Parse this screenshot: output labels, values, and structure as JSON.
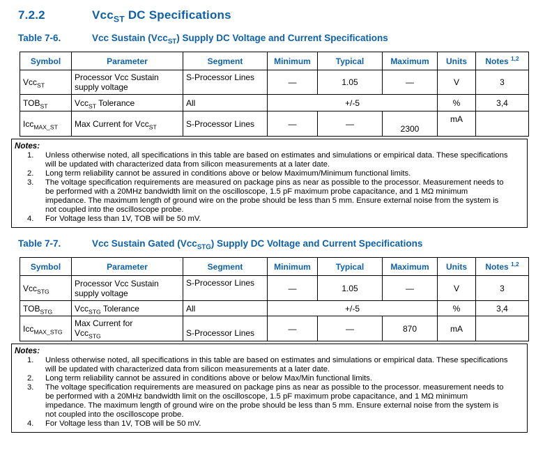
{
  "theme": {
    "accent_blue": "#0e61a9"
  },
  "section": {
    "number": "7.2.2",
    "title": "Vcc_{ST} DC Specifications"
  },
  "tables": [
    {
      "label": "Table 7-6.",
      "caption": "Vcc Sustain (Vcc_{ST}) Supply DC Voltage and Current Specifications",
      "columns": [
        "Symbol",
        "Parameter",
        "Segment",
        "Minimum",
        "Typical",
        "Maximum",
        "Units",
        "Notes ^{1,2}"
      ],
      "rows": [
        {
          "symbol": "Vcc_{ST}",
          "parameter": "Processor Vcc Sustain supply voltage",
          "segment": "S-Processor Lines",
          "minimum": "—",
          "typical": "1.05",
          "maximum": "—",
          "units": "V",
          "notes": "3"
        },
        {
          "symbol": "TOB_{ST}",
          "parameter": "Vcc_{ST} Tolerance",
          "segment": "All",
          "merged": "+/-5",
          "units": "%",
          "notes": "3,4"
        },
        {
          "symbol": "Icc_{MAX_ST}",
          "parameter": "Max Current for Vcc_{ST}",
          "segment": "S-Processor Lines",
          "minimum": "—",
          "typical": "—",
          "maximum": "2300",
          "units": "mA",
          "notes": ""
        }
      ],
      "notes": {
        "label": "Notes:",
        "items": [
          {
            "num": "1.",
            "text": "Unless otherwise noted, all specifications in this table are based on estimates and simulations or empirical data. These specifications will be updated with characterized data from silicon measurements at a later date."
          },
          {
            "num": "2.",
            "text": "Long term reliability cannot be assured in conditions above or below Maximum/Minimum functional limits."
          },
          {
            "num": "3.",
            "text": "The voltage specification requirements are measured on package pins as near as possible to the processor. Measurement needs to be performed with a 20MHz bandwidth limit on the oscilloscope, 1.5 pF maximum probe capacitance, and 1 MΩ minimum impedance. The maximum length of ground wire on the probe should be less than 5 mm. Ensure external noise from the system is not coupled into the oscilloscope probe."
          },
          {
            "num": "4.",
            "text": "For Voltage less than 1V, TOB will be 50 mV."
          }
        ]
      }
    },
    {
      "label": "Table 7-7.",
      "caption": "Vcc Sustain Gated (Vcc_{STG}) Supply DC Voltage and Current Specifications",
      "columns": [
        "Symbol",
        "Parameter",
        "Segment",
        "Minimum",
        "Typical",
        "Maximum",
        "Units",
        "Notes ^{1,2}"
      ],
      "rows": [
        {
          "symbol": "Vcc_{STG}",
          "parameter": "Processor Vcc Sustain supply voltage",
          "segment": "S-Processor Lines",
          "minimum": "—",
          "typical": "1.05",
          "maximum": "—",
          "units": "V",
          "notes": "3"
        },
        {
          "symbol": "TOB_{STG}",
          "parameter": "Vcc_{STG} Tolerance",
          "segment": "All",
          "merged": "+/-5",
          "units": "%",
          "notes": "3,4"
        },
        {
          "symbol": "Icc_{MAX_STG}",
          "parameter": "Max Current for Vcc_{STG}",
          "segment": "S-Processor Lines",
          "minimum": "—",
          "typical": "—",
          "maximum": "870",
          "units": "mA",
          "notes": ""
        }
      ],
      "notes": {
        "label": "Notes:",
        "items": [
          {
            "num": "1.",
            "text": "Unless otherwise noted, all specifications in this table are based on estimates and simulations or empirical data. These specifications will be updated with characterized data from silicon measurements at a later date."
          },
          {
            "num": "2.",
            "text": "Long term reliability cannot be assured in conditions above or below Max/Min functional limits."
          },
          {
            "num": "3.",
            "text": "The voltage specification requirements are measured on package pins as near as possible to the processor. measurement needs to be performed with a 20MHz bandwidth limit on the oscilloscope, 1.5 pF maximum probe capacitance, and 1 MΩ minimum impedance. The maximum length of ground wire on the probe should be less than 5 mm. Ensure external noise from the system is not coupled into the oscilloscope probe."
          },
          {
            "num": "4.",
            "text": "For Voltage less than 1V, TOB will be 50 mV."
          }
        ]
      }
    }
  ]
}
